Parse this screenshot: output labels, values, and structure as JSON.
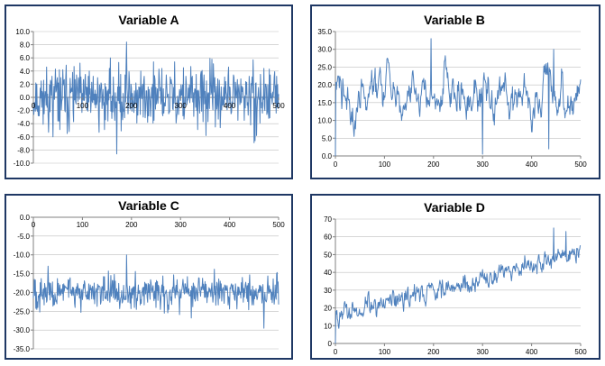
{
  "chart_data": [
    {
      "type": "line",
      "title": "Variable A",
      "series": [
        {
          "values": []
        }
      ],
      "gen": {
        "mode": "noise",
        "seed": 11,
        "mean": 0,
        "amp": 3.2,
        "spikes": [
          [
            190,
            8.4
          ],
          [
            170,
            -8.6
          ],
          [
            40,
            -6.0
          ],
          [
            455,
            -5.8
          ]
        ]
      },
      "x_ticks": [
        0,
        100,
        200,
        300,
        400,
        500
      ],
      "y_ticks": [
        "10.0",
        "8.0",
        "6.0",
        "4.0",
        "2.0",
        "0.0",
        "-2.0",
        "-4.0",
        "-6.0",
        "-8.0",
        "-10.0"
      ],
      "xlim": [
        0,
        500
      ],
      "ylim": [
        -10,
        10
      ],
      "grid": true,
      "color": "#4f81bd"
    },
    {
      "type": "line",
      "title": "Variable B",
      "series": [
        {
          "values": []
        }
      ],
      "gen": {
        "mode": "ar",
        "seed": 22,
        "mean": 18,
        "amp": 3.0,
        "phi": 0.85,
        "spikes": [
          [
            0,
            0.0
          ],
          [
            195,
            33.0
          ],
          [
            300,
            0.5
          ],
          [
            445,
            30.0
          ],
          [
            435,
            2.0
          ]
        ]
      },
      "x_ticks": [
        0,
        100,
        200,
        300,
        400,
        500
      ],
      "y_ticks": [
        "35.0",
        "30.0",
        "25.0",
        "20.0",
        "15.0",
        "10.0",
        "5.0",
        "0.0"
      ],
      "xlim": [
        0,
        500
      ],
      "ylim": [
        0,
        35
      ],
      "grid": true,
      "color": "#4f81bd"
    },
    {
      "type": "line",
      "title": "Variable C",
      "series": [
        {
          "values": []
        }
      ],
      "gen": {
        "mode": "noise",
        "seed": 33,
        "mean": -20,
        "amp": 3.0,
        "spikes": [
          [
            190,
            -10.0
          ],
          [
            470,
            -29.5
          ],
          [
            30,
            -13.0
          ]
        ]
      },
      "x_ticks": [
        0,
        100,
        200,
        300,
        400,
        500
      ],
      "y_ticks": [
        "0.0",
        "-5.0",
        "-10.0",
        "-15.0",
        "-20.0",
        "-25.0",
        "-30.0",
        "-35.0"
      ],
      "xlim": [
        0,
        500
      ],
      "ylim": [
        -35,
        0
      ],
      "grid": true,
      "color": "#4f81bd"
    },
    {
      "type": "line",
      "title": "Variable D",
      "series": [
        {
          "values": []
        }
      ],
      "gen": {
        "mode": "trend",
        "seed": 44,
        "start": 15,
        "end": 52,
        "amp": 3.5,
        "phi": 0.6,
        "spikes": [
          [
            0,
            0.0
          ],
          [
            445,
            65.0
          ],
          [
            470,
            63.0
          ]
        ]
      },
      "x_ticks": [
        0,
        100,
        200,
        300,
        400,
        500
      ],
      "y_ticks": [
        "70",
        "60",
        "50",
        "40",
        "30",
        "20",
        "10",
        "0"
      ],
      "xlim": [
        0,
        500
      ],
      "ylim": [
        0,
        70
      ],
      "grid": true,
      "color": "#4f81bd"
    }
  ]
}
